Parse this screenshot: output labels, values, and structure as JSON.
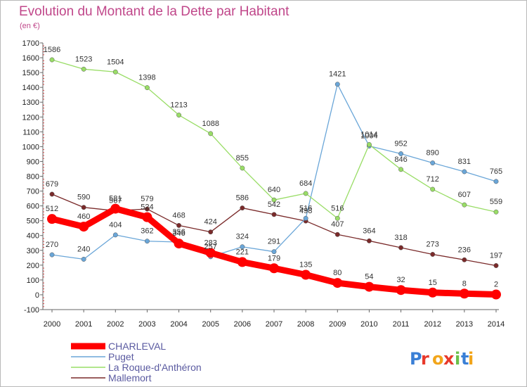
{
  "chart_data": {
    "type": "line",
    "title": "Evolution du Montant de la Dette par Habitant",
    "subtitle": "(en €)",
    "ylim": [
      -100,
      1700
    ],
    "y_ticks": [
      -100,
      0,
      100,
      200,
      300,
      400,
      500,
      600,
      700,
      800,
      900,
      1000,
      1100,
      1200,
      1300,
      1400,
      1500,
      1600,
      1700
    ],
    "x": [
      "2000",
      "2001",
      "2002",
      "2003",
      "2004",
      "2005",
      "2006",
      "2007",
      "2008",
      "2009",
      "2010",
      "2011",
      "2012",
      "2013",
      "2014"
    ],
    "grid": false,
    "legend_position": "bottom-left",
    "series": [
      {
        "name": "CHARLEVAL",
        "color": "#ff0000",
        "values": [
          512,
          460,
          581,
          524,
          346,
          283,
          221,
          179,
          135,
          80,
          54,
          32,
          15,
          8,
          2
        ]
      },
      {
        "name": "Puget",
        "color": "#6aa6d8",
        "values": [
          270,
          240,
          404,
          362,
          356,
          257,
          324,
          291,
          516,
          1421,
          1004,
          952,
          890,
          831,
          765
        ]
      },
      {
        "name": "La Roque-d'Anthéron",
        "color": "#99dd66",
        "values": [
          1586,
          1523,
          1504,
          1398,
          1213,
          1088,
          855,
          640,
          684,
          516,
          1014,
          846,
          712,
          607,
          559
        ]
      },
      {
        "name": "Mallemort",
        "color": "#7a2a2a",
        "values": [
          679,
          590,
          567,
          579,
          468,
          424,
          586,
          542,
          498,
          407,
          364,
          318,
          273,
          236,
          197
        ]
      }
    ],
    "data_labels": {
      "CHARLEVAL": [
        "512",
        "460",
        "581",
        "524",
        "346",
        "283",
        "221",
        "179",
        "135",
        "80",
        "54",
        "32",
        "15",
        "8",
        "2"
      ],
      "Puget": [
        "270",
        "240",
        "404",
        "362",
        "356",
        "257",
        "324",
        "291",
        "516",
        "1421",
        "1004",
        "952",
        "890",
        "831",
        "765"
      ],
      "La Roque-d'Anthéron": [
        "1586",
        "1523",
        "1504",
        "1398",
        "1213",
        "1088",
        "855",
        "640",
        "684",
        "516",
        "1014",
        "846",
        "712",
        "607",
        "559"
      ],
      "Mallemort": [
        "679",
        "590",
        "567",
        "579",
        "468",
        "424",
        "586",
        "542",
        "498",
        "407",
        "364",
        "318",
        "273",
        "236",
        "197"
      ]
    }
  },
  "watermark": "Proxiti"
}
